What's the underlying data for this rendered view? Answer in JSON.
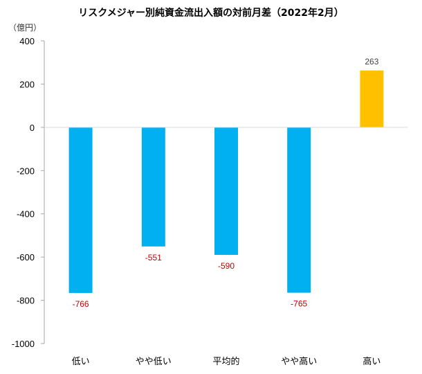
{
  "chart_data": {
    "type": "bar",
    "title": "リスクメジャー別純資金流出入額の対前月差（2022年2月）",
    "ylabel": "（億円）",
    "xlabel": "",
    "categories": [
      "低い",
      "やや低い",
      "平均的",
      "やや高い",
      "高い"
    ],
    "values": [
      -766,
      -551,
      -590,
      -765,
      263
    ],
    "data_labels": [
      "-766",
      "-551",
      "-590",
      "-765",
      "263"
    ],
    "ylim": [
      -1000,
      400
    ],
    "yticks": [
      400,
      200,
      0,
      -200,
      -400,
      -600,
      -800,
      -1000
    ],
    "ytick_labels": [
      "400",
      "200",
      "0",
      "-200",
      "-400",
      "-600",
      "-800",
      "-1000"
    ],
    "grid": false,
    "colors": {
      "negative_bar": "#00B0F0",
      "positive_bar": "#FFC000",
      "negative_label": "#C00000",
      "positive_label": "#404040",
      "axis": "#A6A6A6",
      "zero_line": "#D9D9D9"
    }
  }
}
